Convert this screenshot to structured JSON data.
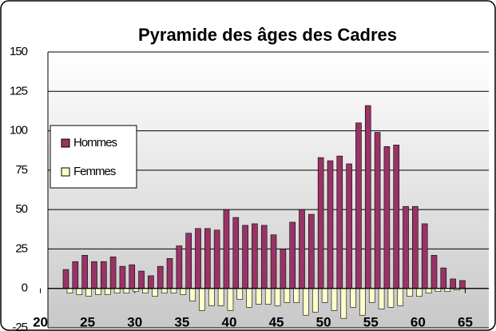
{
  "chart_data": {
    "type": "bar",
    "title": "Pyramide des âges des Cadres",
    "x": [
      23,
      24,
      25,
      26,
      27,
      28,
      29,
      30,
      31,
      32,
      33,
      34,
      35,
      36,
      37,
      38,
      39,
      40,
      41,
      42,
      43,
      44,
      45,
      46,
      47,
      48,
      49,
      50,
      51,
      52,
      53,
      54,
      55,
      56,
      57,
      58,
      59,
      60,
      61,
      62,
      63,
      64,
      65
    ],
    "series": [
      {
        "name": "Hommes",
        "color": "#993366",
        "values": [
          12,
          17,
          21,
          17,
          17,
          20,
          14,
          15,
          11,
          8,
          14,
          19,
          27,
          35,
          38,
          38,
          37,
          50,
          45,
          40,
          41,
          40,
          34,
          25,
          42,
          50,
          47,
          83,
          81,
          84,
          79,
          105,
          116,
          99,
          90,
          91,
          52,
          52,
          41,
          21,
          13,
          6,
          5
        ]
      },
      {
        "name": "Femmes",
        "color": "#ffffcc",
        "values": [
          -3,
          -4,
          -5,
          -4,
          -4,
          -3,
          -3,
          -2,
          -3,
          -5,
          -3,
          -3,
          -4,
          -8,
          -14,
          -11,
          -11,
          -14,
          -7,
          -12,
          -10,
          -10,
          -11,
          -9,
          -9,
          -17,
          -15,
          -9,
          -14,
          -19,
          -12,
          -17,
          -9,
          -13,
          -12,
          -11,
          -5,
          -5,
          -3,
          -2,
          -2,
          -1,
          0
        ]
      }
    ],
    "xlim": [
      20.8,
      67.5
    ],
    "xticks": [
      20,
      25,
      30,
      35,
      40,
      45,
      50,
      55,
      60,
      65
    ],
    "ylim": [
      -25,
      150
    ],
    "yticks": [
      -25,
      0,
      25,
      50,
      75,
      100,
      125,
      150
    ],
    "grid": true,
    "legend": "left"
  }
}
